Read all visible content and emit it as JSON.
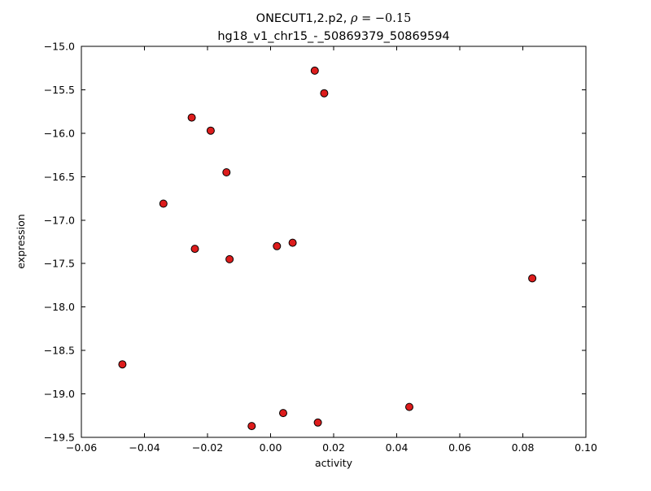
{
  "chart_data": {
    "type": "scatter",
    "title": {
      "prefix": "ONECUT1,2.p2, ",
      "rho": "ρ",
      "equation": " = −0.15"
    },
    "subtitle": "hg18_v1_chr15_-_50869379_50869594",
    "xlabel": "activity",
    "ylabel": "expression",
    "xlim": [
      -0.06,
      0.1
    ],
    "ylim": [
      -19.5,
      -15.0
    ],
    "xticks": [
      -0.06,
      -0.04,
      -0.02,
      0.0,
      0.02,
      0.04,
      0.06,
      0.08,
      0.1
    ],
    "xtick_labels": [
      "−0.06",
      "−0.04",
      "−0.02",
      "0.00",
      "0.02",
      "0.04",
      "0.06",
      "0.08",
      "0.10"
    ],
    "yticks": [
      -15.0,
      -15.5,
      -16.0,
      -16.5,
      -17.0,
      -17.5,
      -18.0,
      -18.5,
      -19.0,
      -19.5
    ],
    "ytick_labels": [
      "−15.0",
      "−15.5",
      "−16.0",
      "−16.5",
      "−17.0",
      "−17.5",
      "−18.0",
      "−18.5",
      "−19.0",
      "−19.5"
    ],
    "grid": false,
    "legend": null,
    "marker": {
      "shape": "circle",
      "fill": "#dd1c1c",
      "edge": "#000000",
      "radius": 4.5
    },
    "frame_color": "#000000",
    "background_color": "#ffffff",
    "points": [
      [
        0.014,
        -15.28
      ],
      [
        0.017,
        -15.54
      ],
      [
        -0.025,
        -15.82
      ],
      [
        -0.019,
        -15.97
      ],
      [
        -0.014,
        -16.45
      ],
      [
        -0.034,
        -16.81
      ],
      [
        -0.024,
        -17.33
      ],
      [
        0.002,
        -17.3
      ],
      [
        0.007,
        -17.26
      ],
      [
        -0.013,
        -17.45
      ],
      [
        0.083,
        -17.67
      ],
      [
        -0.047,
        -18.66
      ],
      [
        0.044,
        -19.15
      ],
      [
        0.004,
        -19.22
      ],
      [
        -0.006,
        -19.37
      ],
      [
        0.015,
        -19.33
      ]
    ]
  }
}
